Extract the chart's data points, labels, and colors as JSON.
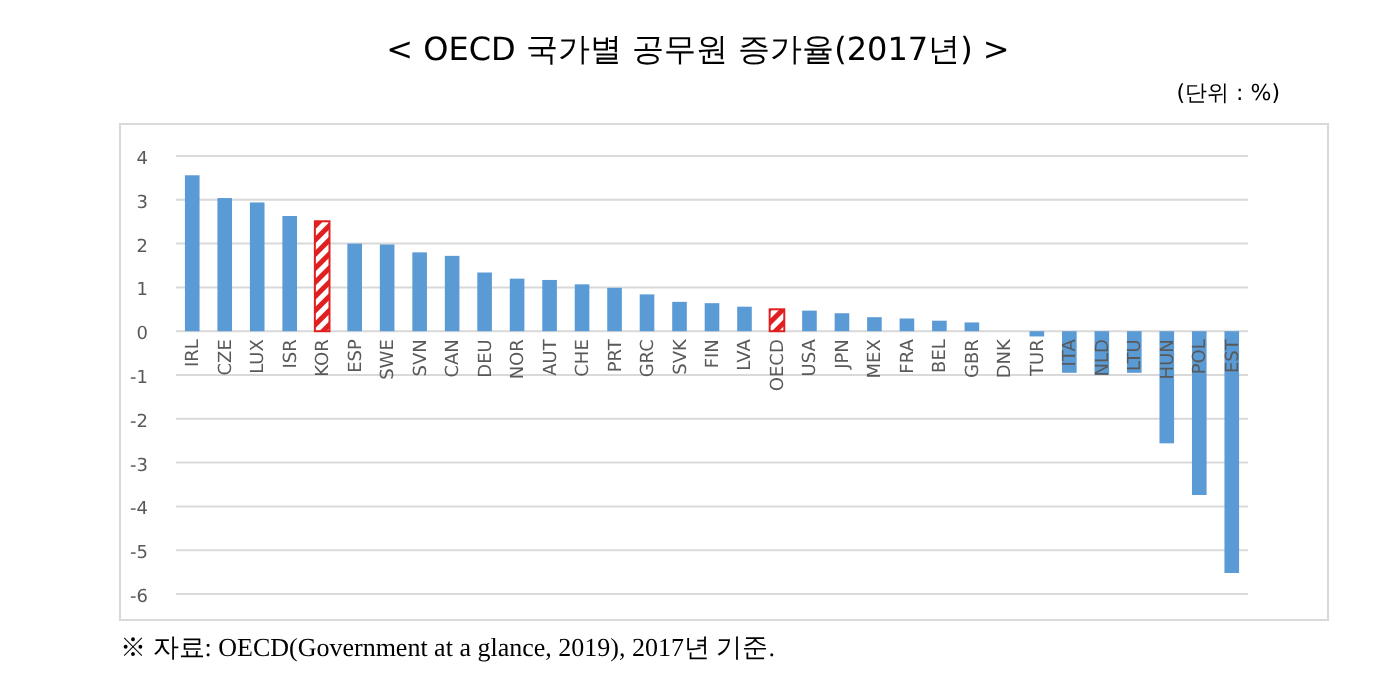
{
  "chart_data": {
    "type": "bar",
    "title": "< OECD 국가별 공무원 증가율(2017년) >",
    "annotations": [
      "(단위 : %)",
      "※ 자료: OECD(Government at a glance, 2019), 2017년 기준."
    ],
    "categories": [
      "IRL",
      "CZE",
      "LUX",
      "ISR",
      "KOR",
      "ESP",
      "SWE",
      "SVN",
      "CAN",
      "DEU",
      "NOR",
      "AUT",
      "CHE",
      "PRT",
      "GRC",
      "SVK",
      "FIN",
      "LVA",
      "OECD",
      "USA",
      "JPN",
      "MEX",
      "FRA",
      "BEL",
      "GBR",
      "DNK",
      "TUR",
      "ITA",
      "NLD",
      "LTU",
      "HUN",
      "POL",
      "EST"
    ],
    "values": [
      3.56,
      3.04,
      2.94,
      2.63,
      2.51,
      2.0,
      1.98,
      1.8,
      1.72,
      1.34,
      1.2,
      1.17,
      1.07,
      0.99,
      0.84,
      0.67,
      0.64,
      0.56,
      0.5,
      0.47,
      0.41,
      0.32,
      0.29,
      0.24,
      0.2,
      0,
      -0.12,
      -0.95,
      -1.0,
      -0.95,
      -2.56,
      -3.74,
      -5.52
    ],
    "color": "#5b9bd5",
    "colors": [
      "#5b9bd5",
      "#5b9bd5",
      "#5b9bd5",
      "#5b9bd5",
      "#e02020",
      "#5b9bd5",
      "#5b9bd5",
      "#5b9bd5",
      "#5b9bd5",
      "#5b9bd5",
      "#5b9bd5",
      "#5b9bd5",
      "#5b9bd5",
      "#5b9bd5",
      "#5b9bd5",
      "#5b9bd5",
      "#5b9bd5",
      "#5b9bd5",
      "#e02020",
      "#5b9bd5",
      "#5b9bd5",
      "#5b9bd5",
      "#5b9bd5",
      "#5b9bd5",
      "#5b9bd5",
      "#5b9bd5",
      "#5b9bd5",
      "#5b9bd5",
      "#5b9bd5",
      "#5b9bd5",
      "#5b9bd5",
      "#5b9bd5",
      "#5b9bd5"
    ],
    "ylim": [
      -6,
      4
    ],
    "yticks": [
      -6,
      -5,
      -4,
      -3,
      -2,
      -1,
      0,
      1,
      2,
      3,
      4
    ],
    "grid": "y"
  }
}
